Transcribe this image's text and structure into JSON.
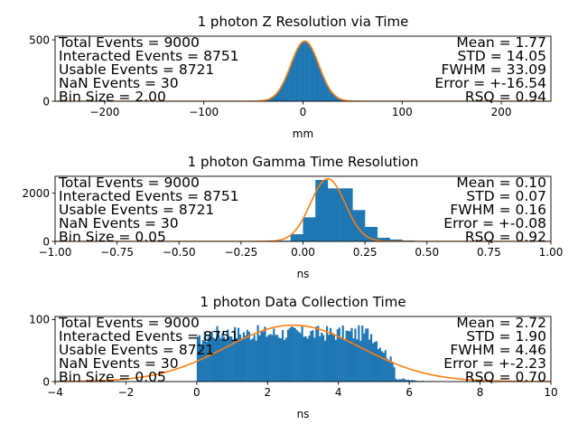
{
  "chart_data": [
    {
      "type": "bar",
      "title": "1 photon Z Resolution via Time",
      "xlabel": "mm",
      "ylabel": "",
      "xlim": [
        -250,
        250
      ],
      "ylim": [
        0,
        530
      ],
      "xticks": [
        "−200",
        "−100",
        "0",
        "100",
        "200"
      ],
      "xtick_values": [
        -200,
        -100,
        0,
        100,
        200
      ],
      "yticks": [
        "0",
        "500"
      ],
      "ytick_values": [
        0,
        500
      ],
      "bin_size": 2.0,
      "hist": {
        "kind": "gauss",
        "mean": 1.77,
        "sigma": 14.05,
        "peak": 490,
        "start": -40,
        "end": 44
      },
      "fit": {
        "mean": 1.77,
        "sigma": 14.05,
        "peak": 490,
        "color": "#ff7f0e"
      },
      "stats_left": [
        "Total Events = 9000",
        "Interacted Events = 8751",
        "Usable Events = 8721",
        "NaN Events = 30",
        "Bin Size = 2.00"
      ],
      "stats_right": [
        "Mean = 1.77",
        "STD = 14.05",
        "FWHM = 33.09",
        "Error = +-16.54",
        "RSQ = 0.94"
      ]
    },
    {
      "type": "bar",
      "title": "1 photon Gamma Time Resolution",
      "xlabel": "ns",
      "ylabel": "",
      "xlim": [
        -1.0,
        1.0
      ],
      "ylim": [
        0,
        2700
      ],
      "xticks": [
        "−1.00",
        "−0.75",
        "−0.50",
        "−0.25",
        "0.00",
        "0.25",
        "0.50",
        "0.75",
        "1.00"
      ],
      "xtick_values": [
        -1.0,
        -0.75,
        -0.5,
        -0.25,
        0.0,
        0.25,
        0.5,
        0.75,
        1.0
      ],
      "yticks": [
        "0",
        "2000"
      ],
      "ytick_values": [
        0,
        2000
      ],
      "bin_size": 0.05,
      "bars": {
        "start": -0.1,
        "width": 0.05,
        "values": [
          30,
          300,
          1000,
          2550,
          2200,
          2200,
          1300,
          600,
          150,
          80,
          40,
          20,
          10
        ]
      },
      "fit": {
        "mean": 0.1,
        "sigma": 0.07,
        "peak": 2600,
        "color": "#ff7f0e"
      },
      "stats_left": [
        "Total Events = 9000",
        "Interacted Events = 8751",
        "Usable Events = 8721",
        "NaN Events = 30",
        "Bin Size = 0.05"
      ],
      "stats_right": [
        "Mean = 0.10",
        "STD = 0.07",
        "FWHM = 0.16",
        "Error = +-0.08",
        "RSQ = 0.92"
      ]
    },
    {
      "type": "bar",
      "title": "1 photon Data Collection Time",
      "xlabel": "ns",
      "ylabel": "",
      "xlim": [
        -4,
        10
      ],
      "ylim": [
        0,
        105
      ],
      "xticks": [
        "−4",
        "−2",
        "0",
        "2",
        "4",
        "6",
        "8",
        "10"
      ],
      "xtick_values": [
        -4,
        -2,
        0,
        2,
        4,
        6,
        8,
        10
      ],
      "yticks": [
        "0",
        "100"
      ],
      "yticks_values_note": "",
      "ytick_values": [
        0,
        100
      ],
      "bin_size": 0.05,
      "hist": {
        "kind": "uniform",
        "start": 0.0,
        "end": 5.55,
        "level": 78,
        "noise": 13,
        "tail_end": 6.7
      },
      "fit": {
        "mean": 2.72,
        "sigma": 1.9,
        "peak": 91,
        "color": "#ff7f0e"
      },
      "stats_left": [
        "Total Events = 9000",
        "Interacted Events = 8751",
        "Usable Events = 8721",
        "NaN Events = 30",
        "Bin Size = 0.05"
      ],
      "stats_right": [
        "Mean = 2.72",
        "STD = 1.90",
        "FWHM = 4.46",
        "Error = +-2.23",
        "RSQ = 0.70"
      ]
    }
  ],
  "colors": {
    "bars": "#1f77b4",
    "fit": "#ff7f0e",
    "axes": "#000000"
  }
}
